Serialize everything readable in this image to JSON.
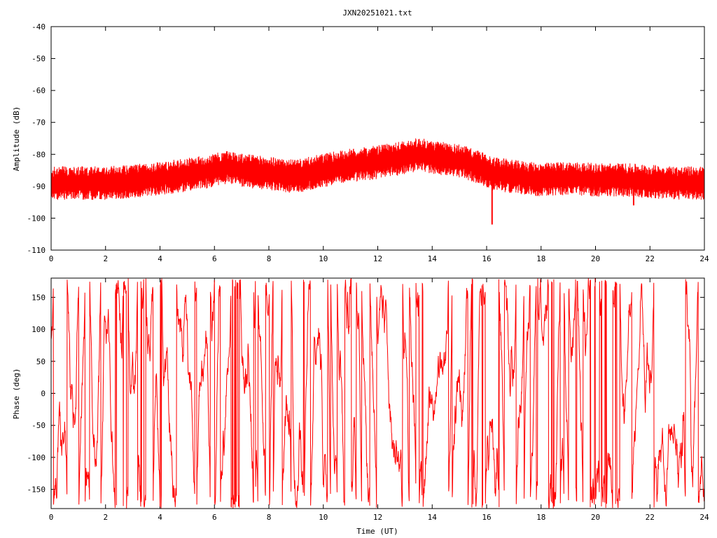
{
  "title": "JXN20251021.txt",
  "colors": {
    "series": "#ff0000",
    "axis": "#000000",
    "background": "#ffffff"
  },
  "chart_data": [
    {
      "type": "line",
      "ylabel": "Amplitude (dB)",
      "xlim": [
        0,
        24
      ],
      "ylim": [
        -110,
        -40
      ],
      "x_ticks": [
        0,
        2,
        4,
        6,
        8,
        10,
        12,
        14,
        16,
        18,
        20,
        22,
        24
      ],
      "y_ticks": [
        -110,
        -100,
        -90,
        -80,
        -70,
        -60,
        -50,
        -40
      ],
      "grid": false,
      "series": [
        {
          "color": "#ff0000",
          "noise_band_db": 6,
          "x": [
            0,
            1,
            2,
            3,
            4,
            5,
            6,
            6.5,
            7,
            8,
            9,
            10,
            11,
            12,
            13,
            13.5,
            14,
            15,
            15.5,
            16,
            16.2,
            17,
            18,
            19,
            20,
            21,
            22,
            23,
            24
          ],
          "y": [
            -89,
            -89,
            -89,
            -88.5,
            -87.5,
            -86.5,
            -85,
            -84,
            -85,
            -86,
            -87,
            -85,
            -83.5,
            -82.5,
            -81,
            -80,
            -81,
            -82,
            -83.5,
            -85,
            -86,
            -87,
            -88,
            -87.5,
            -88,
            -88,
            -88.5,
            -89,
            -89
          ],
          "dips": [
            {
              "x": 16.2,
              "y": -102
            },
            {
              "x": 21.4,
              "y": -96
            },
            {
              "x": 1.8,
              "y": -94
            }
          ]
        }
      ]
    },
    {
      "type": "line",
      "ylabel": "Phase (deg)",
      "xlabel": "Time (UT)",
      "xlim": [
        0,
        24
      ],
      "ylim": [
        -180,
        180
      ],
      "x_ticks": [
        0,
        2,
        4,
        6,
        8,
        10,
        12,
        14,
        16,
        18,
        20,
        22,
        24
      ],
      "y_ticks": [
        -150,
        -100,
        -50,
        0,
        50,
        100,
        150
      ],
      "grid": false,
      "series": [
        {
          "color": "#ff0000",
          "wrap_range": [
            -180,
            180
          ],
          "behavior": "rapidly varying phase wrapping between -180 and 180 across full day"
        }
      ]
    }
  ]
}
